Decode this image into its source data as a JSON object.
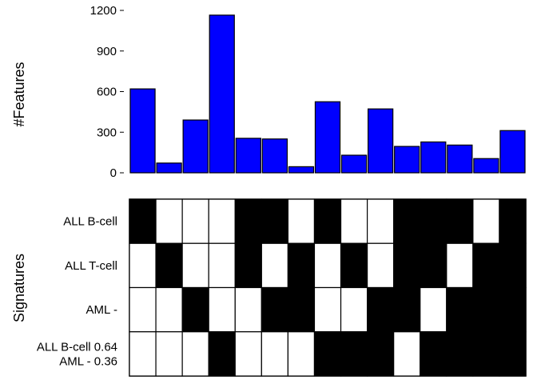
{
  "chart_data": [
    {
      "type": "bar",
      "ylabel": "#Features",
      "yticks": [
        "0",
        "300",
        "600",
        "900",
        "1200"
      ],
      "ylim": [
        0,
        1230
      ],
      "grid": false,
      "values": [
        620,
        72,
        390,
        1165,
        255,
        250,
        45,
        525,
        130,
        472,
        195,
        228,
        205,
        105,
        312
      ],
      "bar_color": "#0000ff"
    },
    {
      "type": "heatmap",
      "ylabel": "Signatures",
      "rows": [
        "ALL B-cell",
        "ALL T-cell",
        "AML -",
        "ALL B-cell 0.64\nAML - 0.36"
      ],
      "on_color": "#000000",
      "off_color": "#ffffff",
      "matrix": [
        [
          1,
          0,
          0,
          0,
          1,
          1,
          0,
          1,
          0,
          0,
          1,
          1,
          1,
          0,
          1
        ],
        [
          0,
          1,
          0,
          0,
          1,
          0,
          1,
          0,
          1,
          0,
          1,
          1,
          0,
          1,
          1
        ],
        [
          0,
          0,
          1,
          0,
          0,
          1,
          1,
          0,
          0,
          1,
          1,
          0,
          1,
          1,
          1
        ],
        [
          0,
          0,
          0,
          1,
          0,
          0,
          0,
          1,
          1,
          1,
          0,
          1,
          1,
          1,
          1
        ]
      ]
    }
  ]
}
